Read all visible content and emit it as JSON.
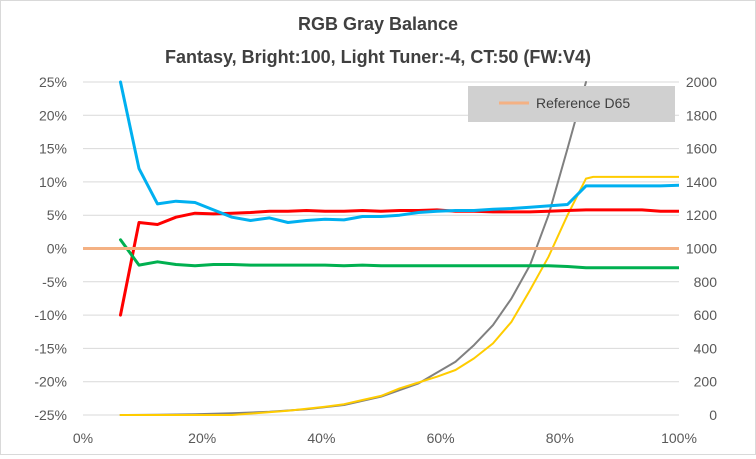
{
  "chart_data": {
    "type": "line",
    "title": "RGB Gray Balance",
    "subtitle": "Fantasy, Bright:100, Light Tuner:-4, CT:50 (FW:V4)",
    "x_ticks": [
      "0%",
      "20%",
      "40%",
      "60%",
      "80%",
      "100%"
    ],
    "y_ticks": [
      "25%",
      "20%",
      "15%",
      "10%",
      "5%",
      "0%",
      "-5%",
      "-10%",
      "-15%",
      "-20%",
      "-25%"
    ],
    "y2_ticks": [
      "2000",
      "1800",
      "1600",
      "1400",
      "1200",
      "1000",
      "800",
      "600",
      "400",
      "200",
      "0"
    ],
    "xlim": [
      0,
      100
    ],
    "ylim": [
      -25,
      25
    ],
    "y2lim": [
      0,
      2000
    ],
    "grid": "horizontal",
    "legend": {
      "position": "top-right",
      "entries": [
        {
          "label": "Reference D65",
          "color": "#f4b183"
        }
      ]
    },
    "series": [
      {
        "name": "",
        "color": "#ff0000",
        "axis": "left",
        "x": [
          6.3,
          9.4,
          12.5,
          15.6,
          18.8,
          21.9,
          25,
          28.1,
          31.3,
          34.4,
          37.5,
          40.6,
          43.8,
          46.9,
          50,
          53.1,
          56.3,
          59.4,
          62.5,
          65.6,
          68.8,
          71.9,
          75,
          78.1,
          81.3,
          84.4,
          87.5,
          90.6,
          93.8,
          96.9,
          100
        ],
        "y": [
          -10,
          3.9,
          3.6,
          4.7,
          5.3,
          5.2,
          5.3,
          5.4,
          5.6,
          5.6,
          5.7,
          5.6,
          5.6,
          5.7,
          5.6,
          5.7,
          5.7,
          5.8,
          5.6,
          5.6,
          5.5,
          5.5,
          5.5,
          5.6,
          5.7,
          5.8,
          5.8,
          5.8,
          5.8,
          5.6,
          5.6
        ]
      },
      {
        "name": "",
        "color": "#00b050",
        "axis": "left",
        "x": [
          6.3,
          9.4,
          12.5,
          15.6,
          18.8,
          21.9,
          25,
          28.1,
          31.3,
          34.4,
          37.5,
          40.6,
          43.8,
          46.9,
          50,
          53.1,
          56.3,
          59.4,
          62.5,
          65.6,
          68.8,
          71.9,
          75,
          78.1,
          81.3,
          84.4,
          87.5,
          90.6,
          93.8,
          96.9,
          100
        ],
        "y": [
          1.3,
          -2.5,
          -2,
          -2.4,
          -2.6,
          -2.4,
          -2.4,
          -2.5,
          -2.5,
          -2.5,
          -2.5,
          -2.5,
          -2.6,
          -2.5,
          -2.6,
          -2.6,
          -2.6,
          -2.6,
          -2.6,
          -2.6,
          -2.6,
          -2.6,
          -2.6,
          -2.6,
          -2.7,
          -2.9,
          -2.9,
          -2.9,
          -2.9,
          -2.9,
          -2.9
        ]
      },
      {
        "name": "",
        "color": "#00b0f0",
        "axis": "left",
        "x": [
          6.3,
          9.4,
          12.5,
          15.6,
          18.8,
          21.9,
          25,
          28.1,
          31.3,
          34.4,
          37.5,
          40.6,
          43.8,
          46.9,
          50,
          53.1,
          56.3,
          59.4,
          62.5,
          65.6,
          68.8,
          71.9,
          75,
          78.1,
          81.3,
          84.4,
          87.5,
          90.6,
          93.8,
          96.9,
          100
        ],
        "y": [
          25,
          12,
          6.7,
          7.1,
          6.9,
          5.8,
          4.7,
          4.2,
          4.6,
          3.9,
          4.2,
          4.4,
          4.3,
          4.8,
          4.8,
          5,
          5.4,
          5.6,
          5.7,
          5.7,
          5.9,
          6,
          6.2,
          6.4,
          6.6,
          9.4,
          9.4,
          9.4,
          9.4,
          9.4,
          9.5
        ]
      },
      {
        "name": "Reference D65",
        "color": "#f4b183",
        "axis": "left",
        "x": [
          0,
          100
        ],
        "y": [
          0,
          0
        ]
      },
      {
        "name": "",
        "color": "#808080",
        "axis": "right",
        "x": [
          6.3,
          12.5,
          18.8,
          25,
          31.3,
          37.5,
          43.8,
          50,
          56.3,
          62.5,
          65.6,
          68.8,
          71.9,
          75,
          78.1,
          81.3,
          84.4
        ],
        "y": [
          0,
          2,
          4,
          10,
          20,
          35,
          60,
          110,
          190,
          320,
          420,
          540,
          700,
          900,
          1200,
          1600,
          2000
        ]
      },
      {
        "name": "",
        "color": "#ffcc00",
        "axis": "right",
        "x": [
          6.3,
          15.6,
          25,
          34.4,
          40.6,
          43.8,
          46.9,
          50,
          53.1,
          56.3,
          59.4,
          62.5,
          65.6,
          68.8,
          71.9,
          75,
          78.1,
          81.3,
          84.4,
          85.6,
          87.5,
          90.6,
          93.8,
          96.9,
          100
        ],
        "y": [
          0,
          0,
          0,
          25,
          50,
          65,
          90,
          115,
          160,
          195,
          230,
          270,
          340,
          430,
          560,
          750,
          950,
          1200,
          1420,
          1430,
          1430,
          1430,
          1430,
          1430,
          1430
        ]
      }
    ]
  }
}
